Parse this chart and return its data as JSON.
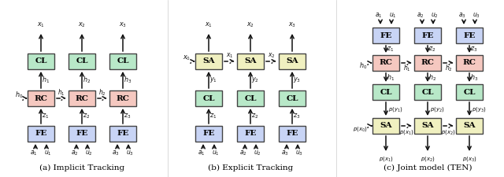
{
  "bg_color": "#ffffff",
  "fe_color": "#c8d4f5",
  "rc_color": "#f5c8c0",
  "cl_color": "#b8e8c8",
  "sa_color": "#f0f0c0",
  "box_edge": "#444444",
  "arr_color": "#111111",
  "label_a": "(a) Implicit Tracking",
  "label_b": "(b) Explicit Tracking",
  "label_c": "(c) Joint model (TEN)"
}
